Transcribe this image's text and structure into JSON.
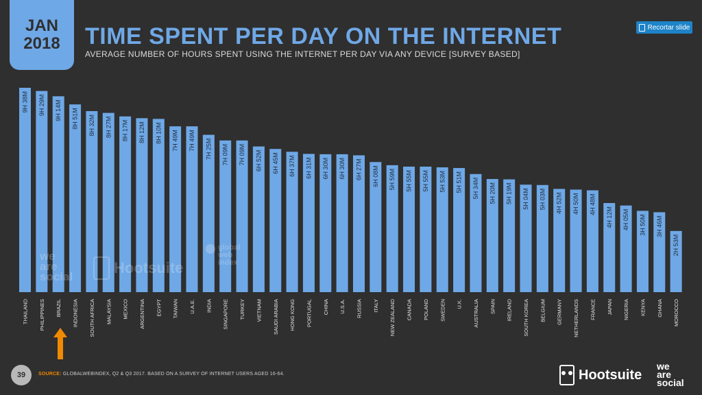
{
  "header": {
    "month": "JAN",
    "year": "2018",
    "title": "TIME SPENT PER DAY ON THE INTERNET",
    "subtitle": "AVERAGE NUMBER OF HOURS SPENT USING THE INTERNET PER DAY VIA ANY DEVICE [SURVEY BASED]",
    "clip_button": "Recortar slide"
  },
  "watermarks": {
    "we": "we",
    "are": "are",
    "social": "social",
    "hootsuite": "Hootsuite",
    "gwi_global": "global",
    "gwi_web": "web",
    "gwi_index": "index"
  },
  "footer": {
    "page": "39",
    "source_label": "SOURCE:",
    "source_text": "GLOBALWEBINDEX, Q2 & Q3 2017. BASED ON A SURVEY OF INTERNET USERS AGED 16-64.",
    "hootsuite": "Hootsuite",
    "we": "we",
    "are": "are",
    "social": "social"
  },
  "colors": {
    "bar": "#6fa8e6",
    "background": "#2f2f2f",
    "arrow": "#f08a00",
    "accent": "#1e83c8"
  },
  "highlight": {
    "category": "BRAZIL",
    "marker": "arrow-up"
  },
  "chart_data": {
    "type": "bar",
    "title": "TIME SPENT PER DAY ON THE INTERNET",
    "categories": [
      "THAILAND",
      "PHILIPPINES",
      "BRAZIL",
      "INDONESIA",
      "SOUTH AFRICA",
      "MALAYSIA",
      "MEXICO",
      "ARGENTINA",
      "EGYPT",
      "TAIWAN",
      "U.A.E.",
      "INDIA",
      "SINGAPORE",
      "TURKEY",
      "VIETNAM",
      "SAUDI ARABIA",
      "HONG KONG",
      "PORTUGAL",
      "CHINA",
      "U.S.A.",
      "RUSSIA",
      "ITALY",
      "NEW ZEALAND",
      "CANADA",
      "POLAND",
      "SWEDEN",
      "U.K.",
      "AUSTRALIA",
      "SPAIN",
      "IRELAND",
      "SOUTH KOREA",
      "BELGIUM",
      "GERMANY",
      "NETHERLANDS",
      "FRANCE",
      "JAPAN",
      "NIGERIA",
      "KENYA",
      "GHANA",
      "MOROCCO"
    ],
    "labels": [
      "9H 38M",
      "9H 29M",
      "9H 14M",
      "8H 51M",
      "8H 32M",
      "8H 27M",
      "8H 17M",
      "8H 12M",
      "8H 10M",
      "7H 49M",
      "7H 49M",
      "7H 25M",
      "7H 09M",
      "7H 09M",
      "6H 52M",
      "6H 45M",
      "6H 37M",
      "6H 31M",
      "6H 30M",
      "6H 30M",
      "6H 27M",
      "6H 08M",
      "5H 59M",
      "5H 55M",
      "5H 55M",
      "5H 53M",
      "5H 51M",
      "5H 34M",
      "5H 20M",
      "5H 19M",
      "5H 04M",
      "5H 03M",
      "4H 52M",
      "4H 50M",
      "4H 48M",
      "4H 12M",
      "4H 05M",
      "3H 50M",
      "3H 46M",
      "2H 53M"
    ],
    "values": [
      578,
      569,
      554,
      531,
      512,
      507,
      497,
      492,
      490,
      469,
      469,
      445,
      429,
      429,
      412,
      405,
      397,
      391,
      390,
      390,
      387,
      368,
      359,
      355,
      355,
      353,
      351,
      334,
      320,
      319,
      304,
      303,
      292,
      290,
      288,
      252,
      245,
      230,
      226,
      173
    ],
    "value_unit": "minutes per day",
    "ylim": [
      0,
      578
    ],
    "grid": false,
    "legend": "none"
  }
}
